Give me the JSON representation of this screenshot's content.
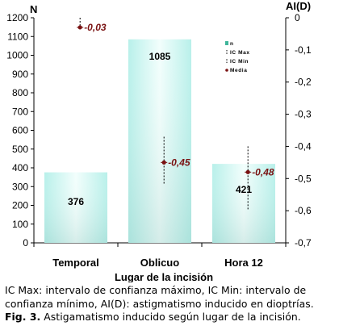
{
  "chart_data": {
    "type": "bar",
    "categories": [
      "Temporal",
      "Oblicuo",
      "Hora 12"
    ],
    "values": [
      376,
      1085,
      421
    ],
    "value_labels": [
      "376",
      "1085",
      "421"
    ],
    "xlabel": "Lugar de la incisión",
    "ylabel_left": "N",
    "ylabel_right": "AI(D)",
    "ylim_left": [
      0,
      1200
    ],
    "yticks_left": [
      "0",
      "100",
      "200",
      "300",
      "400",
      "500",
      "600",
      "700",
      "800",
      "900",
      "1000",
      "1100",
      "1200"
    ],
    "ylim_right": [
      -0.7,
      0
    ],
    "yticks_right": [
      "0",
      "-0,1",
      "-0,2",
      "-0,3",
      "-0,4",
      "-0,5",
      "-0,6",
      "-0,7"
    ],
    "ai_series": {
      "media": [
        -0.03,
        -0.45,
        -0.48
      ],
      "media_labels": [
        "-0,03",
        "-0,45",
        "-0,48"
      ],
      "ic_max": [
        0.0,
        -0.37,
        -0.4
      ],
      "ic_min": [
        -0.04,
        -0.52,
        -0.6
      ]
    },
    "legend": {
      "placement": "top-right",
      "items": [
        "n",
        "IC Max",
        "IC Min",
        "Media"
      ]
    },
    "grid": false,
    "colors": {
      "bar_edge": "#b8f0ea",
      "bar_center": "#f2fefc",
      "marker": "#7a1212",
      "label": "#7a1212",
      "legend_bar": "#3fb59a"
    }
  },
  "caption": {
    "line1": "IC Max: intervalo de confianza máximo, IC Min: intervalo de",
    "line2": "confianza mínimo, AI(D): astigmatismo inducido en dioptrías.",
    "fig_label": "Fig. 3.",
    "fig_text": " Astigamatismo inducido según lugar de la incisión."
  }
}
